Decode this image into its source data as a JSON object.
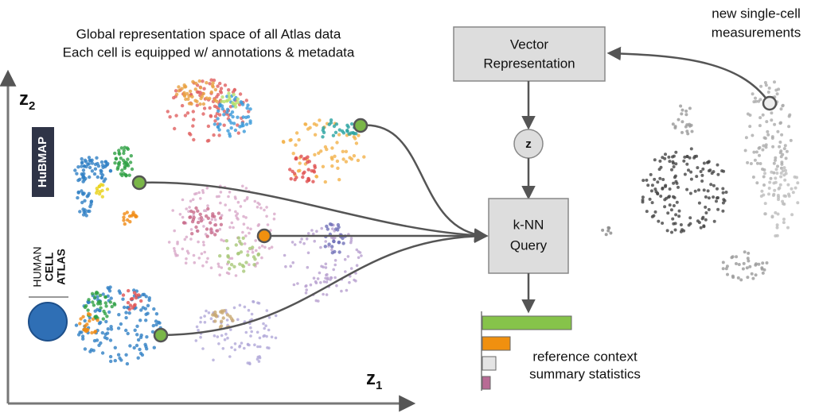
{
  "title": {
    "line1": "Global representation space of all Atlas data",
    "line2": "Each cell is equipped w/ annotations & metadata"
  },
  "axes": {
    "y": {
      "label": "z",
      "subscript": "2"
    },
    "x": {
      "label": "z",
      "subscript": "1"
    }
  },
  "logos": {
    "hubmap": "HuBMAP",
    "hca": [
      "HUMAN",
      "CELL",
      "ATLAS"
    ]
  },
  "nodes": {
    "vector": [
      "Vector",
      "Representation"
    ],
    "z": "z",
    "knn": [
      "k-NN",
      "Query"
    ]
  },
  "new_data": [
    "new single-cell",
    "measurements"
  ],
  "summary": [
    "reference context",
    "summary statistics"
  ]
}
